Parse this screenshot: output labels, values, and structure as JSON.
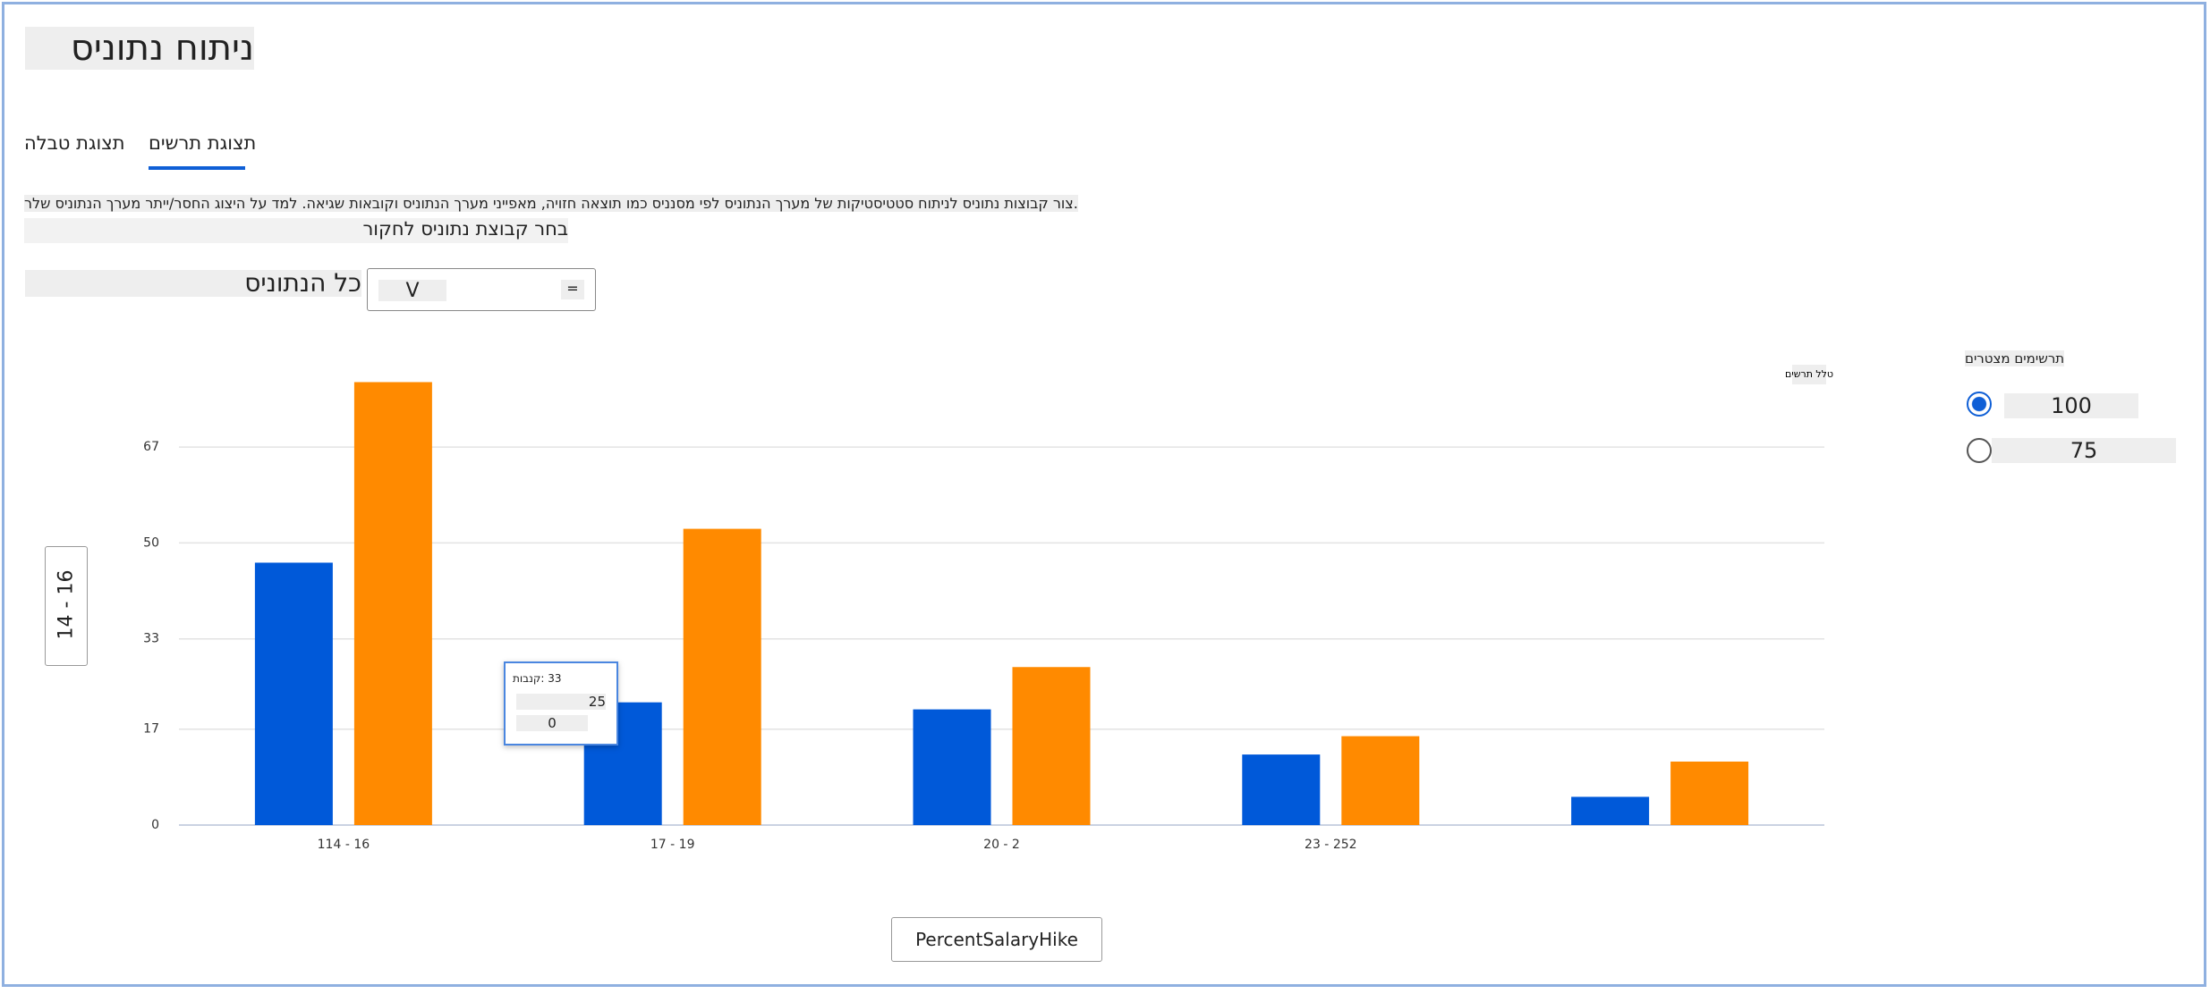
{
  "header": {
    "title": "סינותנ חותינ"
  },
  "tabs": [
    "הלבט תגוצת",
    "םישרת תגוצת"
  ],
  "description": "רלש סינותנה ךרעמ רתיי/רסחה גוציה לע דמל .האיגש תואבוקו סינותנה ךרעמ ינייפאמ ,היוזח האצות ומכ סיננסמ יפל סינותנה ךרעמ לש תוקיטסיטטס חותינל סינותנ תוצובק רוצ.",
  "dataset_prompt": "רוקחל סינותנ תצובק רחב",
  "dataset_select": {
    "label": "סינותנה לכ",
    "value": "V",
    "icon": "="
  },
  "side_button": "14 - 16",
  "radio_group": {
    "title": "םירטצמ םימישרת",
    "options": [
      "100",
      "75"
    ],
    "selected": 0
  },
  "tooltip": {
    "title": "תובנק: 33",
    "rows": [
      "25",
      "0"
    ]
  },
  "chart_data": {
    "type": "bar",
    "subtitle": "םישרת ללט",
    "xlabel": "PercentSalaryHike",
    "categories": [
      "114 - 16",
      "17 - 19",
      "20 - 2",
      "23 - 252",
      null
    ],
    "series": [
      {
        "color": "#0059d9",
        "values": [
          46.5,
          21.75,
          20.5,
          12.5,
          5
        ]
      },
      {
        "color": "#ff8a00",
        "values": [
          78.5,
          52.5,
          28,
          15.75,
          11.25
        ]
      }
    ],
    "ylim": [
      0,
      80
    ],
    "yticks": [
      0,
      17,
      33,
      50,
      67
    ],
    "grid": true
  }
}
